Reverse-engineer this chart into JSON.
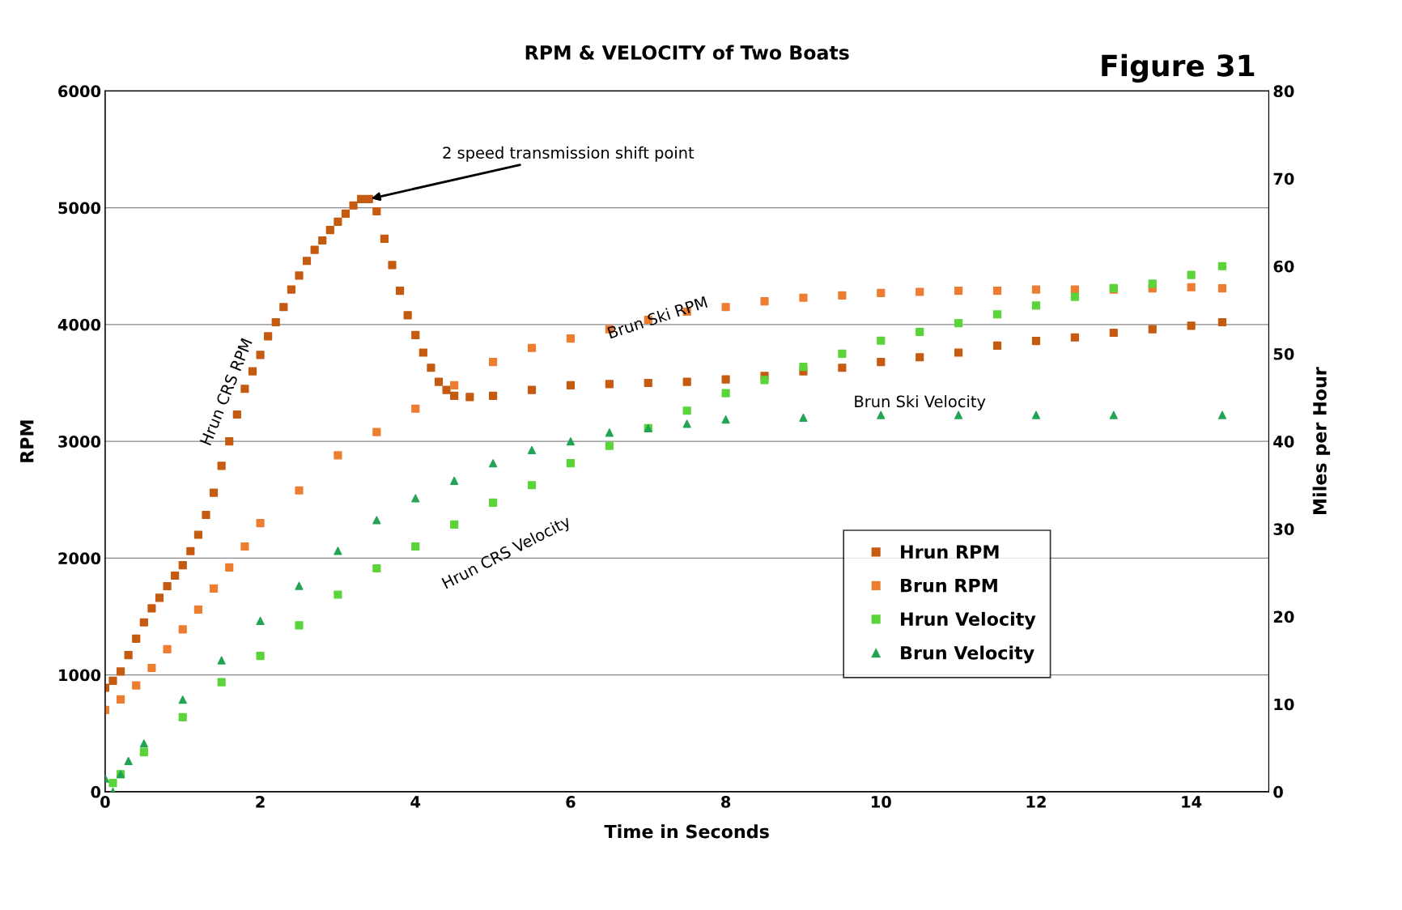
{
  "chart_data": {
    "type": "scatter",
    "title": "RPM & VELOCITY of Two Boats",
    "xlabel": "Time in Seconds",
    "ylabel": "RPM",
    "y2label": "Miles per Hour",
    "xlim": [
      0,
      15
    ],
    "xticks": [
      0,
      2,
      4,
      6,
      8,
      10,
      12,
      14
    ],
    "ylim": [
      0,
      6000
    ],
    "yticks": [
      0,
      1000,
      2000,
      3000,
      4000,
      5000,
      6000
    ],
    "y2lim": [
      0,
      80
    ],
    "y2ticks": [
      0,
      10,
      20,
      30,
      40,
      50,
      60,
      70,
      80
    ],
    "grid": "y",
    "legend": "bottom right",
    "series": [
      {
        "name": "Hrun RPM",
        "color": "#c55a11",
        "marker": "square",
        "x": [
          0,
          0.1,
          0.2,
          0.3,
          0.4,
          0.5,
          0.6,
          0.7,
          0.8,
          0.9,
          1.0,
          1.1,
          1.2,
          1.3,
          1.4,
          1.5,
          1.6,
          1.7,
          1.8,
          1.9,
          2.0,
          2.1,
          2.2,
          2.3,
          2.4,
          2.5,
          2.6,
          2.7,
          2.8,
          2.9,
          3.0,
          3.1,
          3.2,
          3.3,
          3.4,
          3.5,
          3.6,
          3.7,
          3.8,
          3.9,
          4.0,
          4.1,
          4.2,
          4.3,
          4.4,
          4.5,
          4.7,
          5.0,
          5.5,
          6.0,
          6.5,
          7.0,
          7.5,
          8.0,
          8.5,
          9.0,
          9.5,
          10.0,
          10.5,
          11.0,
          11.5,
          12.0,
          12.5,
          13.0,
          13.5,
          14.0,
          14.4
        ],
        "values": [
          890,
          950,
          1030,
          1170,
          1310,
          1450,
          1570,
          1660,
          1760,
          1850,
          1940,
          2060,
          2200,
          2370,
          2560,
          2790,
          3000,
          3230,
          3450,
          3600,
          3740,
          3900,
          4020,
          4150,
          4300,
          4420,
          4545,
          4640,
          4720,
          4810,
          4880,
          4950,
          5020,
          5075,
          5075,
          4970,
          4735,
          4510,
          4290,
          4080,
          3910,
          3760,
          3630,
          3510,
          3440,
          3390,
          3380,
          3390,
          3440,
          3480,
          3490,
          3500,
          3510,
          3530,
          3560,
          3600,
          3630,
          3680,
          3720,
          3760,
          3820,
          3860,
          3890,
          3930,
          3960,
          3990,
          4020
        ]
      },
      {
        "name": "Brun RPM",
        "color": "#ed7d31",
        "marker": "square",
        "x": [
          0,
          0.2,
          0.4,
          0.6,
          0.8,
          1.0,
          1.2,
          1.4,
          1.6,
          1.8,
          2.0,
          2.5,
          3.0,
          3.5,
          4.0,
          4.5,
          5.0,
          5.5,
          6.0,
          6.5,
          7.0,
          7.5,
          8.0,
          8.5,
          9.0,
          9.5,
          10.0,
          10.5,
          11.0,
          11.5,
          12.0,
          12.5,
          13.0,
          13.5,
          14.0,
          14.4
        ],
        "values": [
          700,
          790,
          910,
          1060,
          1220,
          1390,
          1560,
          1740,
          1920,
          2100,
          2300,
          2580,
          2880,
          3080,
          3280,
          3480,
          3680,
          3800,
          3880,
          3960,
          4040,
          4110,
          4150,
          4200,
          4230,
          4250,
          4270,
          4280,
          4290,
          4290,
          4300,
          4300,
          4300,
          4310,
          4320,
          4310
        ]
      },
      {
        "name": "Hrun Velocity",
        "color": "#5bd43a",
        "marker": "square",
        "axis": "y2",
        "x": [
          0.1,
          0.2,
          0.5,
          1.0,
          1.5,
          2.0,
          2.5,
          3.0,
          3.5,
          4.0,
          4.5,
          5.0,
          5.5,
          6.0,
          6.5,
          7.0,
          7.5,
          8.0,
          8.5,
          9.0,
          9.5,
          10.0,
          10.5,
          11.0,
          11.5,
          12.0,
          12.5,
          13.0,
          13.5,
          14.0,
          14.4
        ],
        "values": [
          1,
          2,
          4.5,
          8.5,
          12.5,
          15.5,
          19,
          22.5,
          25.5,
          28,
          30.5,
          33,
          35,
          37.5,
          39.5,
          41.5,
          43.5,
          45.5,
          47,
          48.5,
          50,
          51.5,
          52.5,
          53.5,
          54.5,
          55.5,
          56.5,
          57.5,
          58,
          59,
          60
        ]
      },
      {
        "name": "Brun Velocity",
        "color": "#23a455",
        "marker": "triangle",
        "axis": "y2",
        "x": [
          0,
          0.1,
          0.2,
          0.3,
          0.5,
          1.0,
          1.5,
          2.0,
          2.5,
          3.0,
          3.5,
          4.0,
          4.5,
          5.0,
          5.5,
          6.0,
          6.5,
          7.0,
          7.5,
          8.0,
          9.0,
          10.0,
          11.0,
          12.0,
          13.0,
          14.4
        ],
        "values": [
          1.5,
          0,
          2,
          3.5,
          5.5,
          10.5,
          15,
          19.5,
          23.5,
          27.5,
          31,
          33.5,
          35.5,
          37.5,
          39,
          40,
          41,
          41.5,
          42,
          42.5,
          42.7,
          43,
          43,
          43,
          43,
          43
        ]
      }
    ],
    "annotations": [
      {
        "text": "2 speed transmission shift point",
        "x": 3.4,
        "y": 5075
      },
      "Hrun CRS RPM",
      "Brun Ski RPM",
      "Hrun CRS Velocity",
      "Brun Ski Velocity",
      "Figure 31"
    ]
  }
}
